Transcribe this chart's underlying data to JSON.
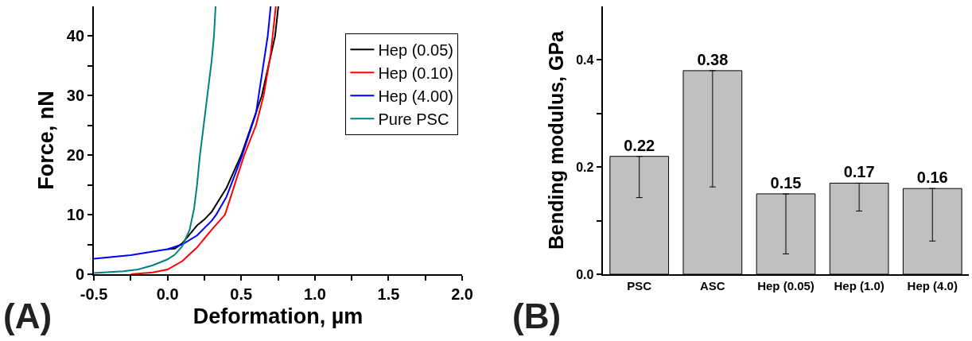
{
  "chart_data": [
    {
      "type": "line",
      "xlabel": "Deformation, µm",
      "ylabel": "Force, nN",
      "annotations": [
        "(A)"
      ],
      "xlim": [
        -0.5,
        2.0
      ],
      "ylim": [
        0,
        45
      ],
      "xticks": [
        -0.5,
        {
          "value": -0.25,
          "label": null
        },
        {
          "value": 0.0,
          "label": "0.0"
        },
        {
          "value": 0.25,
          "label": null
        },
        0.5,
        {
          "value": 0.75,
          "label": null
        },
        {
          "value": 1.0,
          "label": "1.0"
        },
        {
          "value": 1.25,
          "label": null
        },
        1.5,
        {
          "value": 1.75,
          "label": null
        },
        {
          "value": 2.0,
          "label": "2.0"
        }
      ],
      "yticks": [
        0,
        {
          "value": 5,
          "label": null
        },
        10,
        {
          "value": 15,
          "label": null
        },
        20,
        {
          "value": 25,
          "label": null
        },
        30,
        {
          "value": 35,
          "label": null
        },
        40
      ],
      "legend": "top right",
      "marker": "none",
      "line_style": "solid",
      "series": [
        {
          "name": "Hep (0.05)",
          "color": "#000000",
          "x": [
            0.0,
            0.05,
            0.1,
            0.2,
            0.25,
            0.3,
            0.4,
            0.5,
            0.64,
            0.73,
            0.752
          ],
          "values": [
            4.2,
            4.3,
            5.2,
            8.2,
            9.2,
            10.5,
            14.5,
            20,
            30,
            40,
            45
          ]
        },
        {
          "name": "Hep (0.10)",
          "color": "#ff0000",
          "x": [
            -0.25,
            -0.1,
            0.0,
            0.1,
            0.2,
            0.3,
            0.39,
            0.52,
            0.6,
            0.652,
            0.7,
            0.735
          ],
          "values": [
            0,
            0.3,
            0.8,
            2.2,
            4.5,
            7.5,
            10,
            20,
            25,
            30,
            37,
            45
          ]
        },
        {
          "name": "Hep (4.00)",
          "color": "#0000ff",
          "x": [
            -0.5,
            -0.25,
            0.0,
            0.1,
            0.2,
            0.3,
            0.33,
            0.4,
            0.5,
            0.6,
            0.68,
            0.7
          ],
          "values": [
            2.6,
            3.2,
            4.2,
            5.0,
            6.5,
            9,
            10,
            13,
            19.5,
            27,
            40,
            45
          ]
        },
        {
          "name": "Pure PSC",
          "color": "#008080",
          "x": [
            -0.5,
            -0.3,
            -0.2,
            -0.1,
            0.0,
            0.05,
            0.1,
            0.15,
            0.18,
            0.2,
            0.22,
            0.25,
            0.28,
            0.3,
            0.315,
            0.326
          ],
          "values": [
            0.2,
            0.5,
            0.8,
            1.5,
            2.5,
            3.3,
            4.7,
            7.5,
            11,
            15,
            20,
            26,
            32,
            36,
            40,
            45
          ]
        }
      ]
    },
    {
      "type": "bar",
      "ylabel": "Bending modulus, GPa",
      "annotations": [
        "(B)"
      ],
      "categories": [
        "PSC",
        "ASC",
        "Hep (0.05)",
        "Hep (1.0)",
        "Hep (4.0)"
      ],
      "values": [
        0.22,
        0.38,
        0.15,
        0.17,
        0.16
      ],
      "color": "#c0c0c0",
      "errors": [
        [
          0.143,
          0.22
        ],
        [
          0.163,
          0.38
        ],
        [
          0.038,
          0.15
        ],
        [
          0.118,
          0.17
        ],
        [
          0.062,
          0.16
        ]
      ],
      "ylim": [
        0,
        0.5
      ],
      "yticks": [
        {
          "value": 0.0,
          "label": "0.0"
        },
        {
          "value": 0.1,
          "label": null
        },
        0.2,
        {
          "value": 0.3,
          "label": null
        },
        0.4
      ],
      "data_labels": true
    }
  ]
}
